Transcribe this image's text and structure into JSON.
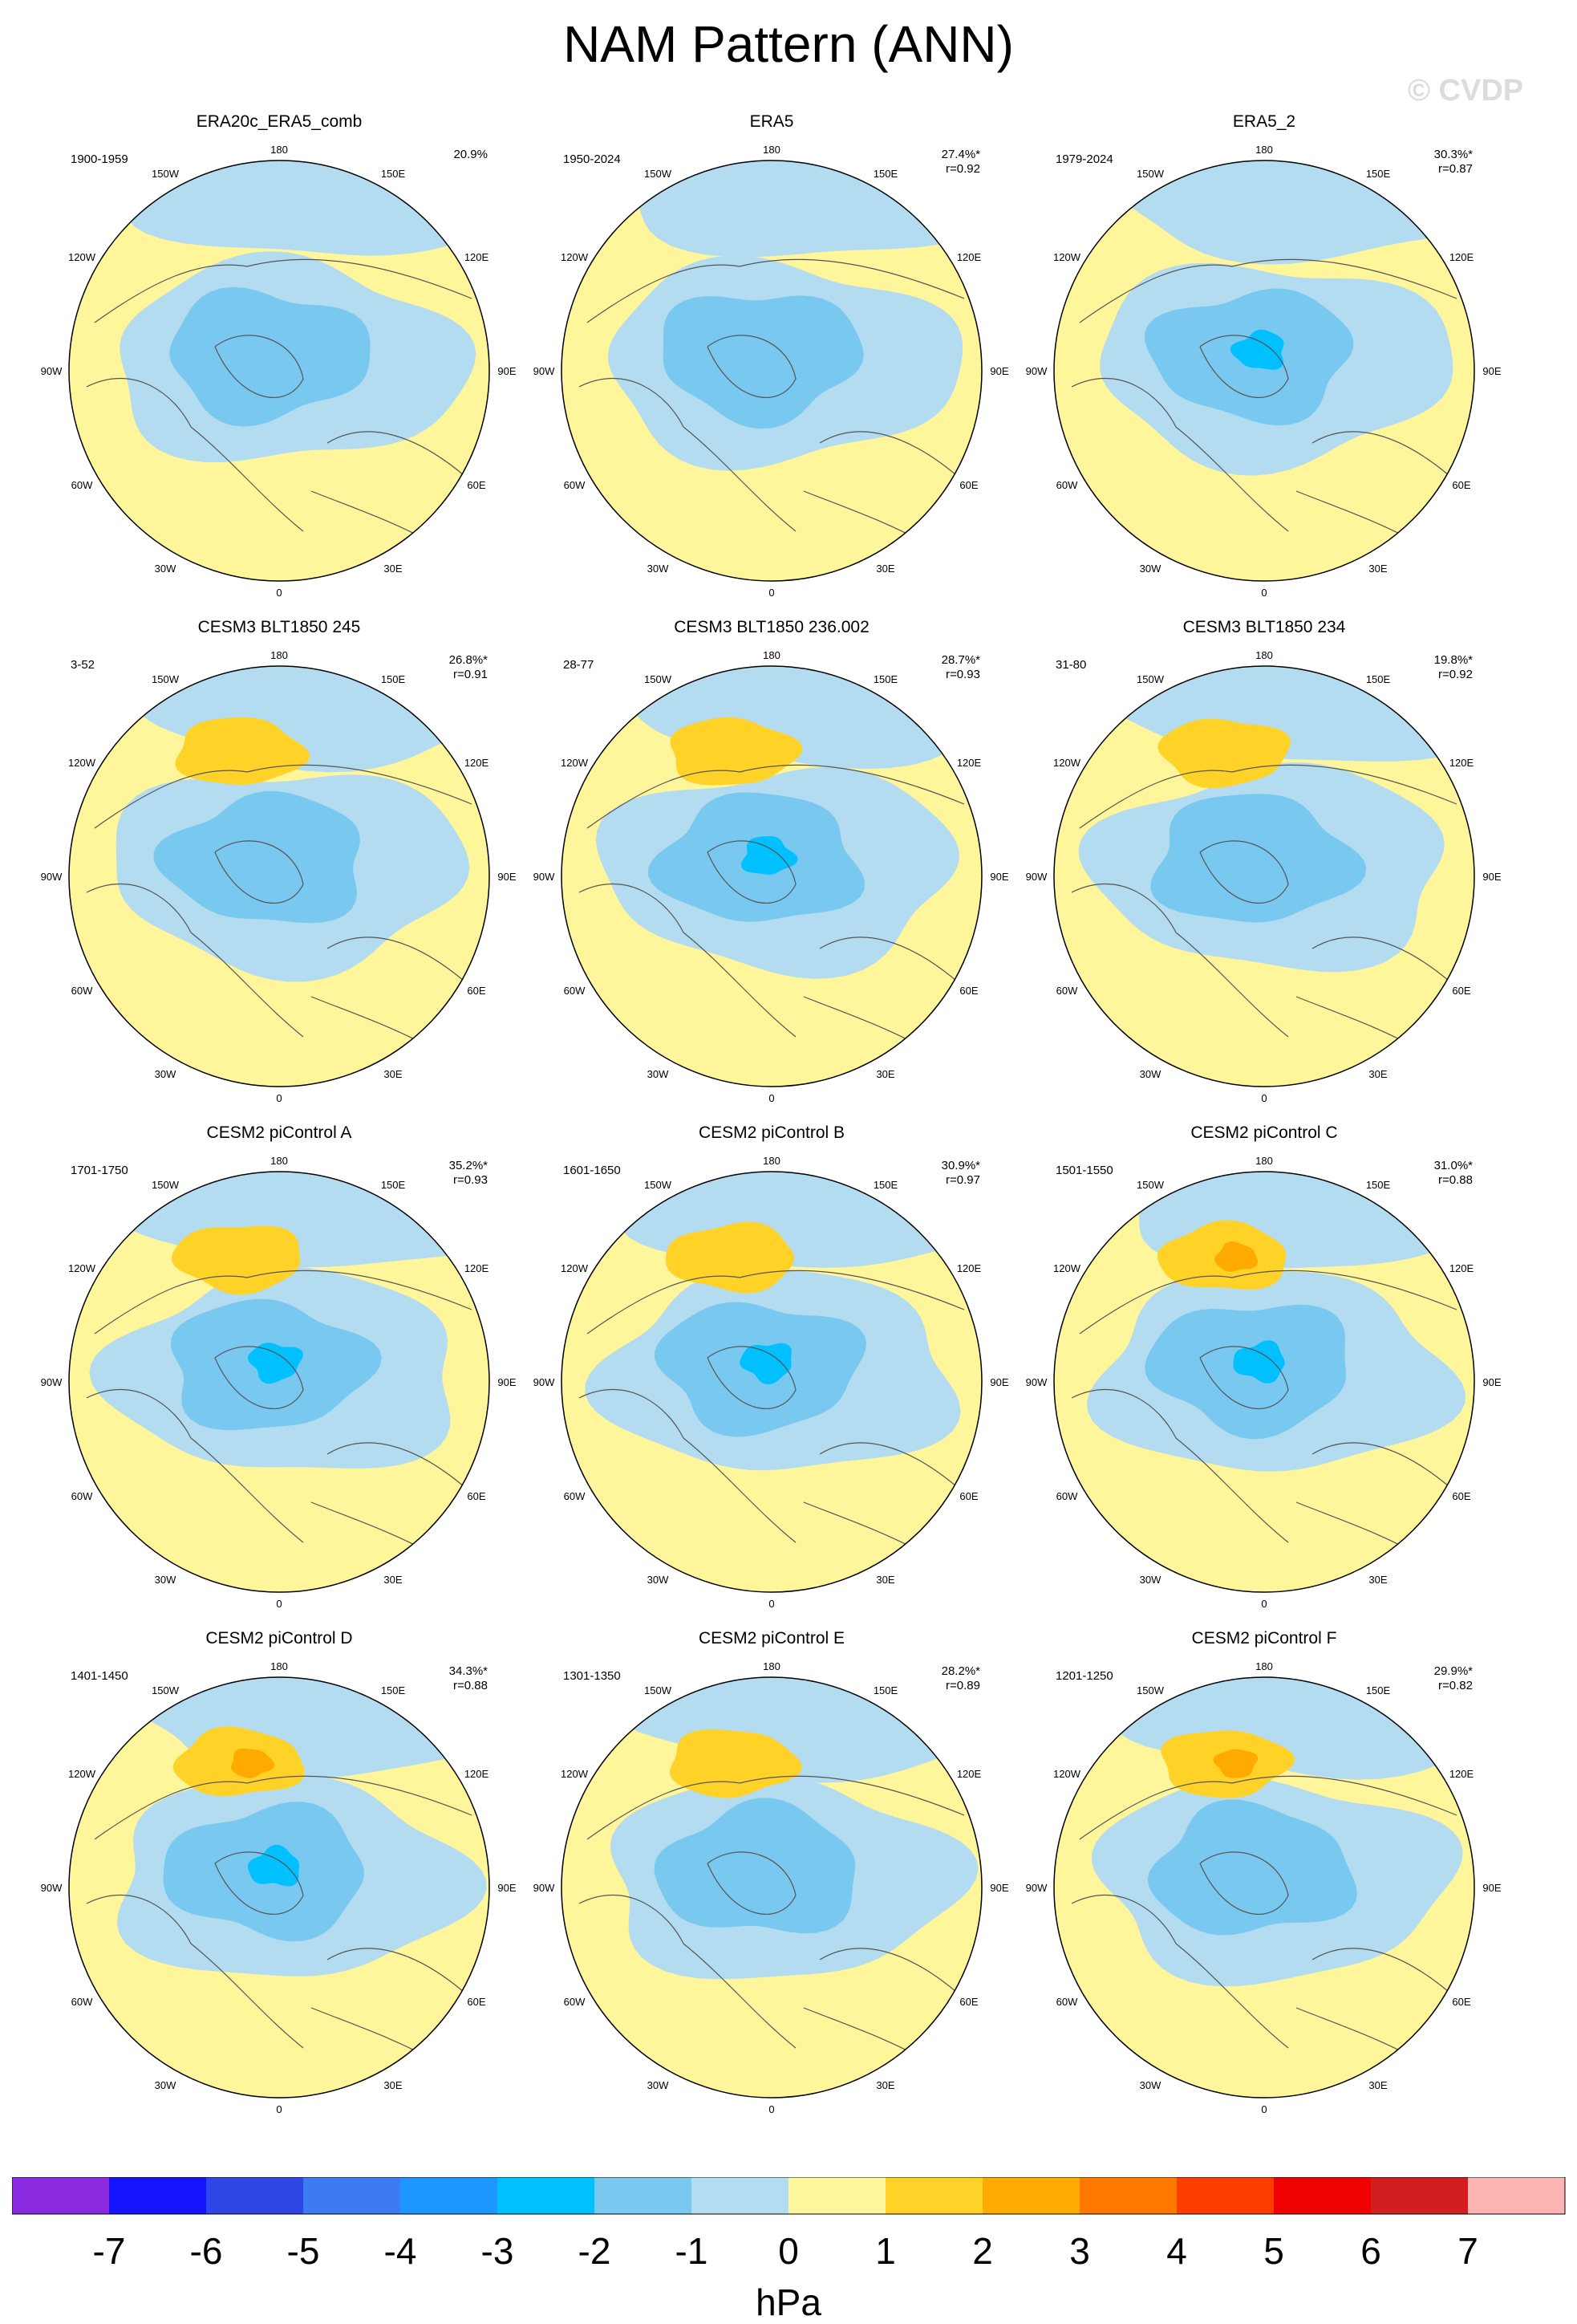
{
  "title": "NAM Pattern (ANN)",
  "watermark": "© CVDP",
  "longitude_labels": [
    "180",
    "150E",
    "120E",
    "90E",
    "60E",
    "30E",
    "0",
    "30W",
    "60W",
    "90W",
    "120W",
    "150W"
  ],
  "panels": [
    {
      "title": "ERA20c_ERA5_comb",
      "period": "1900-1959",
      "pct": "20.9%",
      "r": "",
      "blue": "medium",
      "orange": "none"
    },
    {
      "title": "ERA5",
      "period": "1950-2024",
      "pct": "27.4%*",
      "r": "r=0.92",
      "blue": "medium",
      "orange": "none"
    },
    {
      "title": "ERA5_2",
      "period": "1979-2024",
      "pct": "30.3%*",
      "r": "r=0.87",
      "blue": "strong",
      "orange": "none"
    },
    {
      "title": "CESM3 BLT1850 245",
      "period": "3-52",
      "pct": "26.8%*",
      "r": "r=0.91",
      "blue": "medium",
      "orange": "weak"
    },
    {
      "title": "CESM3 BLT1850 236.002",
      "period": "28-77",
      "pct": "28.7%*",
      "r": "r=0.93",
      "blue": "strong",
      "orange": "weak"
    },
    {
      "title": "CESM3 BLT1850 234",
      "period": "31-80",
      "pct": "19.8%*",
      "r": "r=0.92",
      "blue": "medium",
      "orange": "weak"
    },
    {
      "title": "CESM2 piControl A",
      "period": "1701-1750",
      "pct": "35.2%*",
      "r": "r=0.93",
      "blue": "strong",
      "orange": "weak"
    },
    {
      "title": "CESM2 piControl B",
      "period": "1601-1650",
      "pct": "30.9%*",
      "r": "r=0.97",
      "blue": "strong",
      "orange": "weak"
    },
    {
      "title": "CESM2 piControl C",
      "period": "1501-1550",
      "pct": "31.0%*",
      "r": "r=0.88",
      "blue": "strong",
      "orange": "strong"
    },
    {
      "title": "CESM2 piControl D",
      "period": "1401-1450",
      "pct": "34.3%*",
      "r": "r=0.88",
      "blue": "strong",
      "orange": "strong"
    },
    {
      "title": "CESM2 piControl E",
      "period": "1301-1350",
      "pct": "28.2%*",
      "r": "r=0.89",
      "blue": "medium",
      "orange": "weak"
    },
    {
      "title": "CESM2 piControl F",
      "period": "1201-1250",
      "pct": "29.9%*",
      "r": "r=0.82",
      "blue": "medium",
      "orange": "strong"
    }
  ],
  "colorbar": {
    "unit": "hPa",
    "labels": [
      "-7",
      "-6",
      "-5",
      "-4",
      "-3",
      "-2",
      "-1",
      "0",
      "1",
      "2",
      "3",
      "4",
      "5",
      "6",
      "7"
    ],
    "colors": [
      "#8a2be2",
      "#1414ff",
      "#2e46e6",
      "#3c7cf0",
      "#1e96ff",
      "#00c0ff",
      "#78c8f0",
      "#b4dcf0",
      "#fff59b",
      "#ffd228",
      "#ffaa00",
      "#ff7800",
      "#ff3c00",
      "#f00000",
      "#d21e1e",
      "#ffb4b4"
    ]
  },
  "colors": {
    "yellow": "#fff59b",
    "light_blue": "#b4dcf0",
    "mid_blue": "#78c8f0",
    "deep_blue": "#00c0ff",
    "orange_light": "#ffd228",
    "orange_deep": "#ffaa00",
    "coast": "#555555"
  }
}
